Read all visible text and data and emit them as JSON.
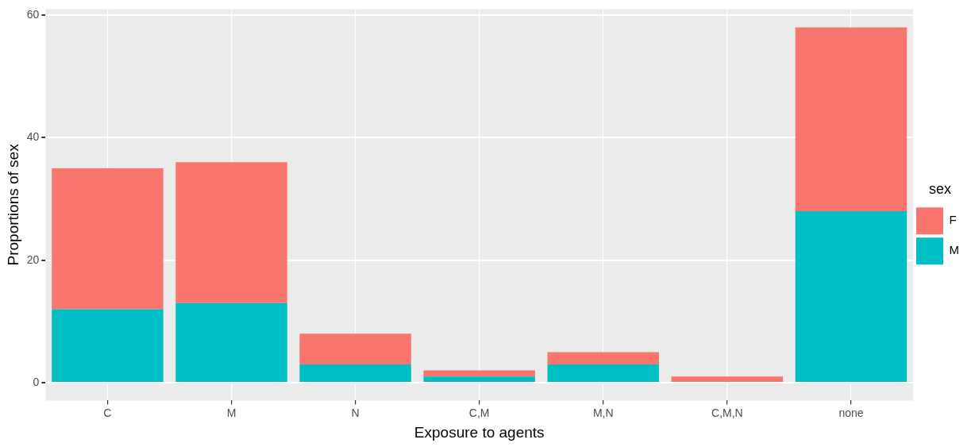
{
  "chart_data": {
    "type": "bar",
    "xlabel": "Exposure to agents",
    "ylabel": "Proportions of sex",
    "legend_title": "sex",
    "categories": [
      "C",
      "M",
      "N",
      "C,M",
      "M,N",
      "C,M,N",
      "none"
    ],
    "series": [
      {
        "name": "M",
        "color": "#00bfc4",
        "values": [
          12,
          13,
          3,
          1,
          3,
          0,
          28
        ]
      },
      {
        "name": "F",
        "color": "#f8766d",
        "values": [
          23,
          23,
          5,
          1,
          2,
          1,
          30
        ]
      }
    ],
    "stacked": true,
    "ylim": [
      -2.9,
      61
    ],
    "yticks": [
      0,
      20,
      40,
      60
    ],
    "grid": true,
    "legend": "right"
  }
}
